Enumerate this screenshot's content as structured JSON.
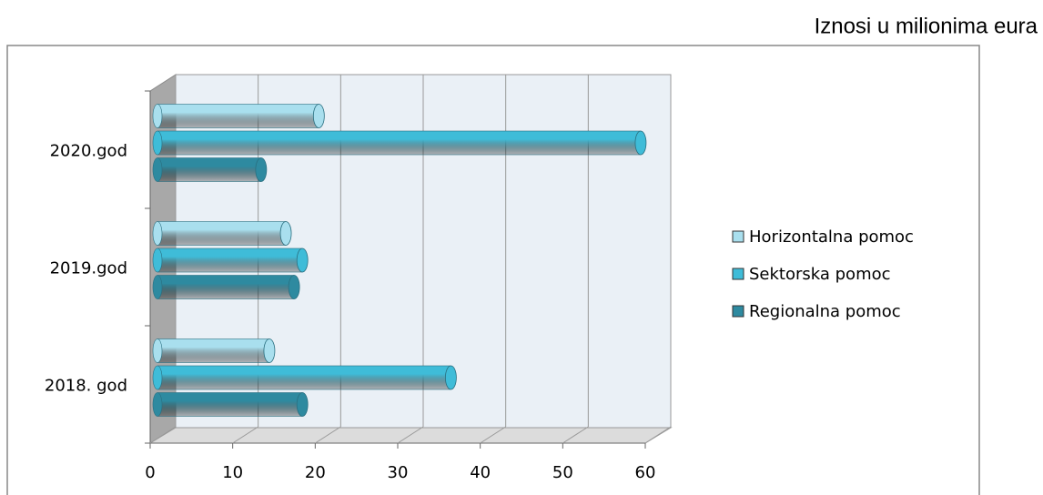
{
  "chart_data": {
    "type": "bar",
    "orientation": "horizontal",
    "title": "Iznosi u milionima eura",
    "categories": [
      "2018. god",
      "2019.god",
      "2020.god"
    ],
    "series": [
      {
        "name": "Horizontalna pomoc",
        "color": "#a9dfee",
        "values": [
          14,
          16,
          20
        ]
      },
      {
        "name": "Sektorska pomoc",
        "color": "#3fbcd8",
        "values": [
          36,
          18,
          59
        ]
      },
      {
        "name": "Regionalna pomoc",
        "color": "#2e8aa0",
        "values": [
          18,
          17,
          13
        ]
      }
    ],
    "xlim": [
      0,
      60
    ],
    "xticks": [
      0,
      10,
      20,
      30,
      40,
      50,
      60
    ],
    "grid": true,
    "legend": "right"
  }
}
